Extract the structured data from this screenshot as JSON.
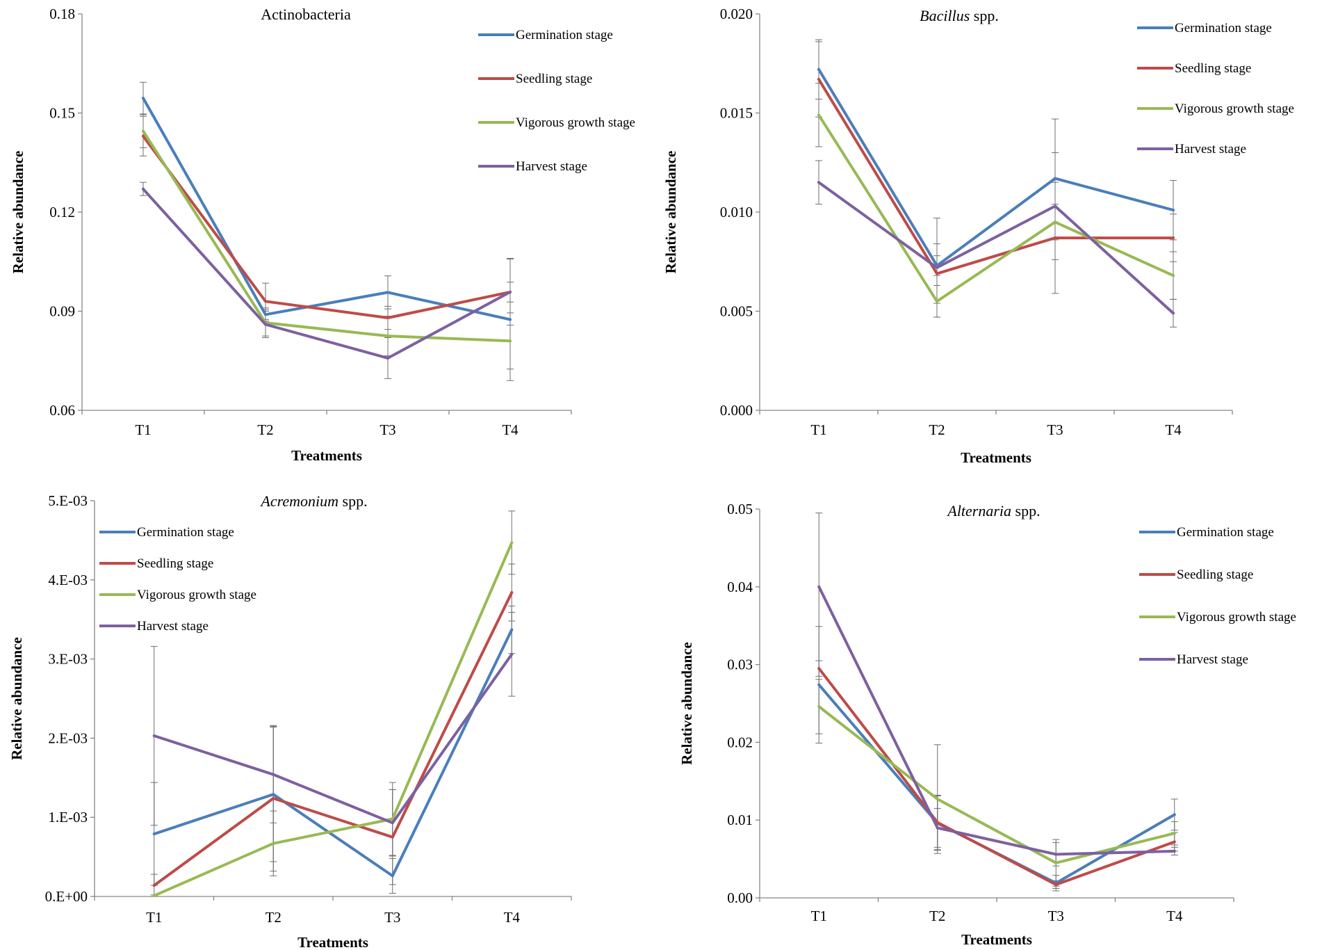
{
  "chart_data": [
    {
      "type": "line",
      "title": "Actinobacteria",
      "title_parts": [
        {
          "text": "Actinobacteria",
          "italic": false
        }
      ],
      "xlabel": "Treatments",
      "ylabel": "Relative abundance",
      "categories": [
        "T1",
        "T2",
        "T3",
        "T4"
      ],
      "ylim": [
        0.06,
        0.18
      ],
      "yticks": [
        "0.06",
        "0.09",
        "0.12",
        "0.15",
        "0.18"
      ],
      "legend_position": "top-right",
      "series": [
        {
          "name": "Germination stage",
          "color": "#4a7ebb",
          "values": [
            0.1545,
            0.089,
            0.0957,
            0.0875
          ],
          "errors": [
            0.0048,
            0.002,
            0.005,
            0.0185
          ]
        },
        {
          "name": "Seedling stage",
          "color": "#be4b48",
          "values": [
            0.143,
            0.093,
            0.088,
            0.0958
          ],
          "errors": [
            0.006,
            0.0055,
            0.0035,
            0.003
          ]
        },
        {
          "name": "Vigorous growth stage",
          "color": "#98b954",
          "values": [
            0.1445,
            0.0865,
            0.0825,
            0.081
          ],
          "errors": [
            0.005,
            0.004,
            0.006,
            0.0085
          ]
        },
        {
          "name": "Harvest stage",
          "color": "#7d60a0",
          "values": [
            0.127,
            0.086,
            0.0758,
            0.0958
          ],
          "errors": [
            0.002,
            0.004,
            0.0062,
            0.01
          ]
        }
      ]
    },
    {
      "type": "line",
      "title": "Bacillus spp.",
      "title_parts": [
        {
          "text": "Bacillus",
          "italic": true
        },
        {
          "text": " spp.",
          "italic": false
        }
      ],
      "xlabel": "Treatments",
      "ylabel": "Relative abundance",
      "categories": [
        "T1",
        "T2",
        "T3",
        "T4"
      ],
      "ylim": [
        0.0,
        0.02
      ],
      "yticks": [
        "0.000",
        "0.005",
        "0.010",
        "0.015",
        "0.020"
      ],
      "legend_position": "top-right",
      "series": [
        {
          "name": "Germination stage",
          "color": "#4a7ebb",
          "values": [
            0.0172,
            0.0073,
            0.0117,
            0.0101
          ],
          "errors": [
            0.0015,
            0.0005,
            0.003,
            0.0015
          ]
        },
        {
          "name": "Seedling stage",
          "color": "#be4b48",
          "values": [
            0.0167,
            0.0069,
            0.0087,
            0.0087
          ],
          "errors": [
            0.0019,
            0.0015,
            0.0028,
            0.0012
          ]
        },
        {
          "name": "Vigorous growth stage",
          "color": "#98b954",
          "values": [
            0.0149,
            0.0055,
            0.0095,
            0.0068
          ],
          "errors": [
            0.0016,
            0.0008,
            0.0009,
            0.0012
          ]
        },
        {
          "name": "Harvest stage",
          "color": "#7d60a0",
          "values": [
            0.0115,
            0.0072,
            0.0103,
            0.0049
          ],
          "errors": [
            0.0011,
            0.0025,
            0.0027,
            0.0007
          ]
        }
      ]
    },
    {
      "type": "line",
      "title": "Acremonium spp.",
      "title_parts": [
        {
          "text": "Acremonium",
          "italic": true
        },
        {
          "text": " spp.",
          "italic": false
        }
      ],
      "xlabel": "Treatments",
      "ylabel": "Relative abundance",
      "categories": [
        "T1",
        "T2",
        "T3",
        "T4"
      ],
      "ylim": [
        0.0,
        0.005
      ],
      "yticks": [
        "0.E+00",
        "1.E-03",
        "2.E-03",
        "3.E-03",
        "4.E-03",
        "5.E-03"
      ],
      "legend_position": "top-left",
      "series": [
        {
          "name": "Germination stage",
          "color": "#4a7ebb",
          "values": [
            0.00079,
            0.00129,
            0.00026,
            0.00337
          ],
          "errors": [
            0.00065,
            0.00085,
            0.00022,
            0.0003
          ]
        },
        {
          "name": "Seedling stage",
          "color": "#be4b48",
          "values": [
            0.00014,
            0.00124,
            0.00075,
            0.00384
          ],
          "errors": [
            0.00014,
            0.00092,
            0.0006,
            0.00036
          ]
        },
        {
          "name": "Vigorous growth stage",
          "color": "#98b954",
          "values": [
            1e-05,
            0.00067,
            0.00098,
            0.00447
          ],
          "errors": [
            1e-05,
            0.00041,
            0.00046,
            0.0004
          ]
        },
        {
          "name": "Harvest stage",
          "color": "#7d60a0",
          "values": [
            0.00203,
            0.00154,
            0.00093,
            0.00306
          ],
          "errors": [
            0.00113,
            0.00061,
            0.00042,
            0.00053
          ]
        }
      ]
    },
    {
      "type": "line",
      "title": "Alternaria spp.",
      "title_parts": [
        {
          "text": "Alternaria",
          "italic": true
        },
        {
          "text": " spp.",
          "italic": false
        }
      ],
      "xlabel": "Treatments",
      "ylabel": "Relative abundance",
      "categories": [
        "T1",
        "T2",
        "T3",
        "T4"
      ],
      "ylim": [
        0.0,
        0.05
      ],
      "yticks": [
        "0.00",
        "0.01",
        "0.02",
        "0.03",
        "0.04",
        "0.05"
      ],
      "legend_position": "top-right",
      "series": [
        {
          "name": "Germination stage",
          "color": "#4a7ebb",
          "values": [
            0.0274,
            0.0096,
            0.0019,
            0.0107
          ],
          "errors": [
            0.0075,
            0.0035,
            0.001,
            0.002
          ]
        },
        {
          "name": "Seedling stage",
          "color": "#be4b48",
          "values": [
            0.0295,
            0.0097,
            0.0017,
            0.0072
          ],
          "errors": [
            0.001,
            0.0035,
            0.0005,
            0.0012
          ]
        },
        {
          "name": "Vigorous growth stage",
          "color": "#98b954",
          "values": [
            0.0246,
            0.0127,
            0.0045,
            0.0083
          ],
          "errors": [
            0.0035,
            0.007,
            0.003,
            0.0015
          ]
        },
        {
          "name": "Harvest stage",
          "color": "#7d60a0",
          "values": [
            0.04,
            0.009,
            0.0056,
            0.006
          ],
          "errors": [
            0.0095,
            0.0025,
            0.0015,
            0.0005
          ]
        }
      ]
    }
  ]
}
